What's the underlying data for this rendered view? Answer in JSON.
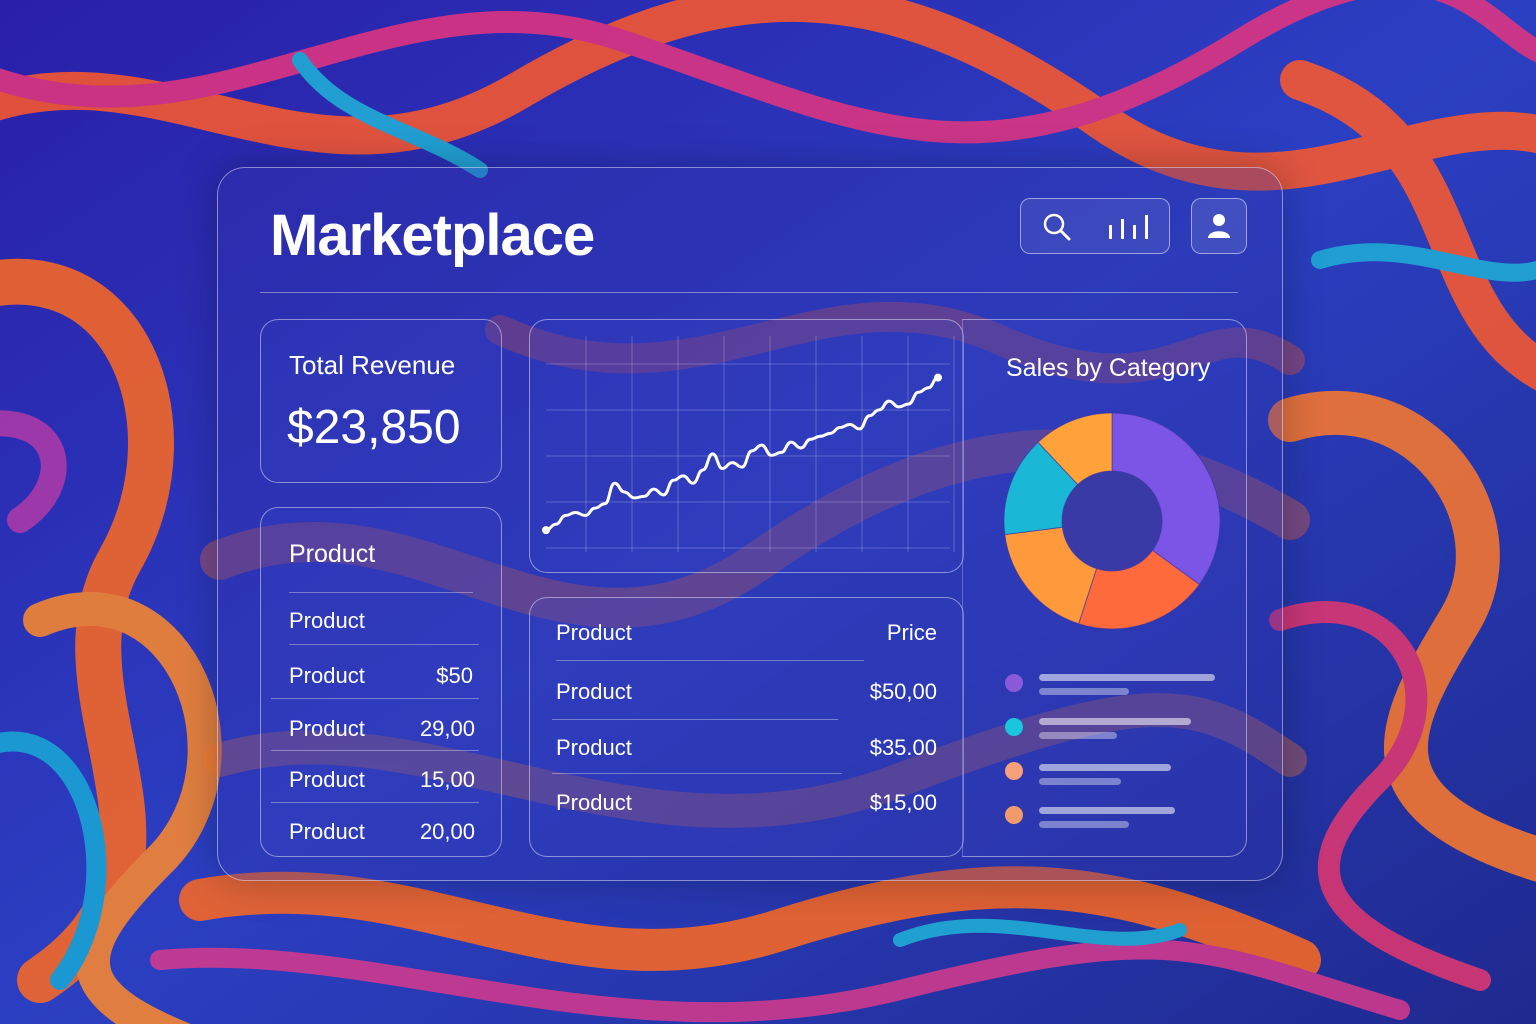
{
  "app": {
    "title": "Marketplace"
  },
  "colors": {
    "accent_purple": "#7d4de0",
    "accent_cyan": "#1ab7d6",
    "accent_orange": "#ff9a3c",
    "accent_coral": "#ff6a3d"
  },
  "header": {
    "search_icon": "search-icon",
    "stats_icon": "bar-chart-icon",
    "user_icon": "user-icon"
  },
  "revenue": {
    "label": "Total Revenue",
    "value": "$23,850"
  },
  "product_list": {
    "heading": "Product",
    "rows": [
      {
        "name": "Product",
        "value": ""
      },
      {
        "name": "Product",
        "value": "$50"
      },
      {
        "name": "Product",
        "value": "29,00"
      },
      {
        "name": "Product",
        "value": "15,00"
      },
      {
        "name": "Product",
        "value": "20,00"
      }
    ]
  },
  "price_table": {
    "columns": [
      "Product",
      "Price"
    ],
    "rows": [
      {
        "name": "Product",
        "price": "$50,00"
      },
      {
        "name": "Product",
        "price": "$35.00"
      },
      {
        "name": "Product",
        "price": "$15,00"
      }
    ]
  },
  "category": {
    "title": "Sales by Category"
  },
  "chart_data": [
    {
      "type": "line",
      "title": "",
      "x": [
        0,
        1,
        2,
        3,
        4,
        5,
        6,
        7,
        8,
        9,
        10,
        11,
        12,
        13,
        14,
        15,
        16,
        17,
        18,
        19,
        20,
        21,
        22,
        23,
        24,
        25,
        26,
        27,
        28,
        29,
        30,
        31,
        32,
        33,
        34,
        35,
        36,
        37,
        38,
        39,
        40
      ],
      "values": [
        4,
        8,
        14,
        16,
        14,
        19,
        22,
        36,
        30,
        26,
        27,
        32,
        28,
        38,
        41,
        36,
        45,
        56,
        46,
        50,
        47,
        58,
        62,
        55,
        57,
        64,
        60,
        66,
        68,
        70,
        74,
        76,
        73,
        82,
        86,
        92,
        88,
        90,
        98,
        101,
        108
      ],
      "xlabel": "",
      "ylabel": "",
      "ylim": [
        0,
        120
      ],
      "grid": true
    },
    {
      "type": "pie",
      "title": "Sales by Category",
      "values": [
        35,
        20,
        18,
        15,
        12
      ],
      "colors": [
        "#7b55e6",
        "#ff6a3d",
        "#ff9a3c",
        "#1ab7d6",
        "#ffa23a"
      ],
      "legend": "below",
      "legend_colors": [
        "#8a5ad8",
        "#1ac6dc",
        "#f6a07a",
        "#f39a6c"
      ]
    }
  ]
}
